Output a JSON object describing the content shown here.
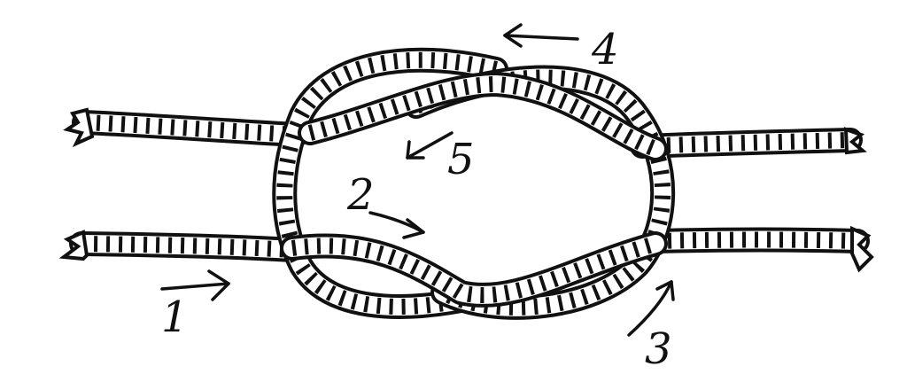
{
  "diagram": {
    "labels": {
      "step_1": "1",
      "step_2": "2",
      "step_3": "3",
      "step_4": "4",
      "step_5": "5"
    },
    "colors": {
      "ink": "#111111",
      "paper": "#ffffff"
    }
  }
}
